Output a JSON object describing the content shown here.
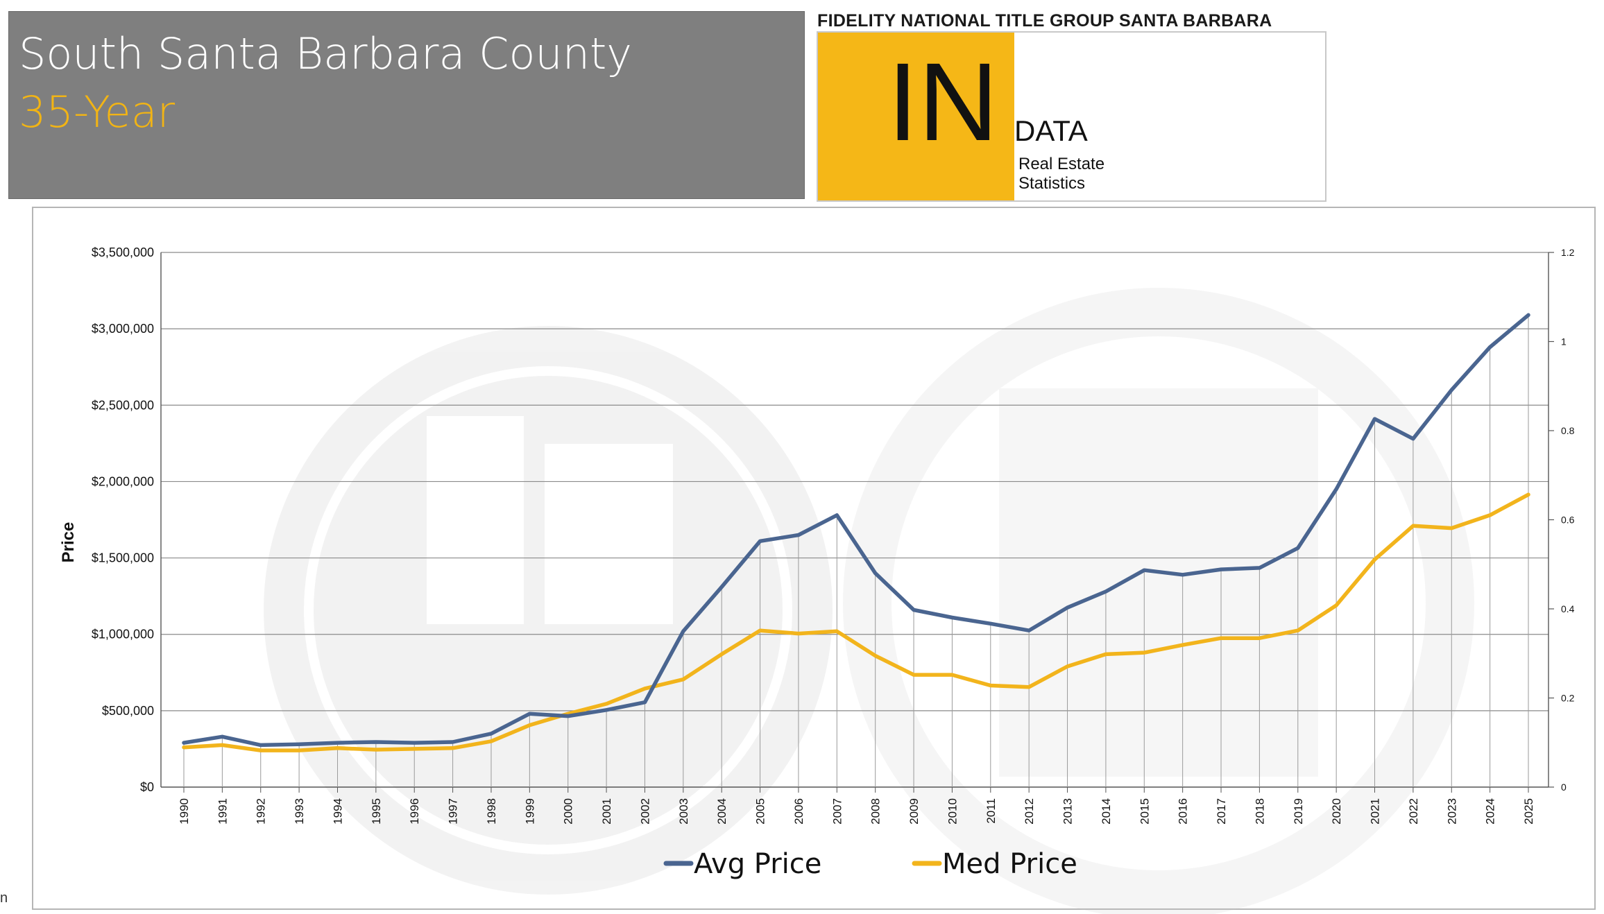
{
  "header": {
    "title": "South Santa Barbara County",
    "subtitle": "35-Year"
  },
  "brand": {
    "header": "FIDELITY NATIONAL TITLE GROUP SANTA BARBARA",
    "logo_big": "IN",
    "logo_data": "DATA",
    "logo_line1": "Real Estate",
    "logo_line2": "Statistics",
    "yellow": "#f5b717"
  },
  "footer_fragment": "n",
  "colors": {
    "avg": "#4a6590",
    "med": "#f2b41c",
    "title_bg": "#7f7f7f",
    "subtitle": "#f2b414"
  },
  "chart_data": {
    "type": "line",
    "ylabel": "Price",
    "xlabel": "",
    "ylim": [
      0,
      3500000
    ],
    "y_ticks": [
      "$0",
      "$500,000",
      "$1,000,000",
      "$1,500,000",
      "$2,000,000",
      "$2,500,000",
      "$3,000,000",
      "$3,500,000"
    ],
    "y2lim": [
      0,
      1.2
    ],
    "y2_ticks": [
      "0",
      "0.2",
      "0.4",
      "0.6",
      "0.8",
      "1",
      "1.2"
    ],
    "grid": true,
    "legend": "bottom",
    "x": [
      "1990",
      "1991",
      "1992",
      "1993",
      "1994",
      "1995",
      "1996",
      "1997",
      "1998",
      "1999",
      "2000",
      "2001",
      "2002",
      "2003",
      "2004",
      "2005",
      "2006",
      "2007",
      "2008",
      "2009",
      "2010",
      "2011",
      "2012",
      "2013",
      "2014",
      "2015",
      "2016",
      "2017",
      "2018",
      "2019",
      "2020",
      "2021",
      "2022",
      "2023",
      "2024",
      "2025"
    ],
    "series": [
      {
        "name": "Avg Price",
        "values": [
          290000,
          330000,
          275000,
          280000,
          290000,
          295000,
          290000,
          295000,
          350000,
          480000,
          465000,
          505000,
          555000,
          1020000,
          1310000,
          1610000,
          1650000,
          1780000,
          1400000,
          1160000,
          1110000,
          1070000,
          1025000,
          1175000,
          1280000,
          1420000,
          1390000,
          1425000,
          1435000,
          1565000,
          1950000,
          2410000,
          2280000,
          2600000,
          2880000,
          3090000
        ]
      },
      {
        "name": "Med Price",
        "values": [
          260000,
          275000,
          240000,
          240000,
          255000,
          245000,
          250000,
          255000,
          300000,
          405000,
          480000,
          545000,
          645000,
          705000,
          870000,
          1025000,
          1005000,
          1020000,
          860000,
          735000,
          735000,
          665000,
          655000,
          790000,
          870000,
          880000,
          930000,
          975000,
          975000,
          1025000,
          1190000,
          1490000,
          1710000,
          1695000,
          1780000,
          1915000
        ]
      }
    ]
  }
}
